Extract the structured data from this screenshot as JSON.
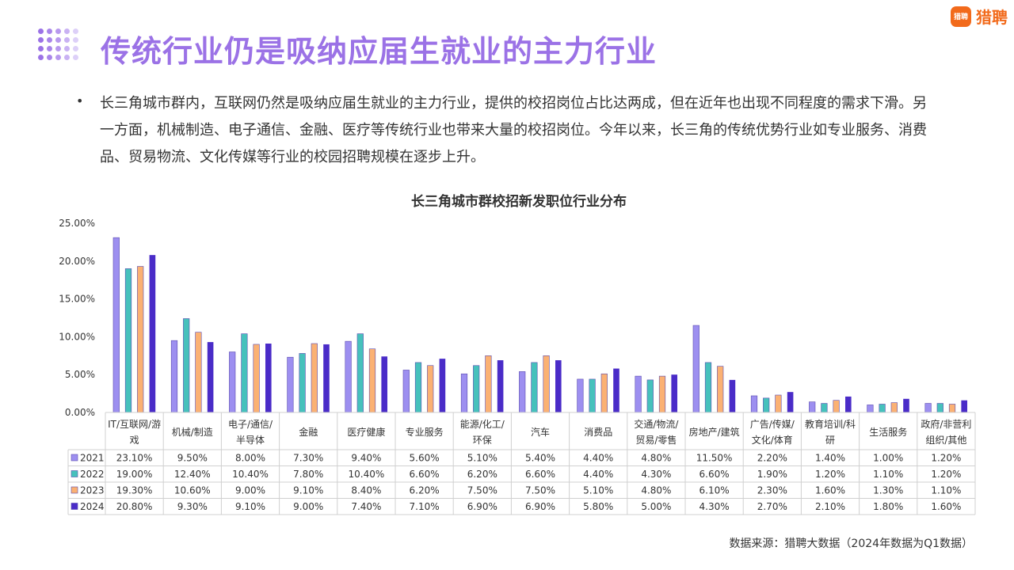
{
  "header": {
    "title": "传统行业仍是吸纳应届生就业的主力行业",
    "logo_mark": "猎聘",
    "logo_text": "猎聘"
  },
  "content": {
    "bullet": "•",
    "paragraph": "长三角城市群内，互联网仍然是吸纳应届生就业的主力行业，提供的校招岗位占比达两成，但在近年也出现不同程度的需求下滑。另一方面，机械制造、电子通信、金融、医疗等传统行业也带来大量的校招岗位。今年以来，长三角的传统优势行业如专业服务、消费品、贸易物流、文化传媒等行业的校园招聘规模在逐步上升。"
  },
  "source": "数据来源：猎聘大数据（2024年数据为Q1数据）",
  "colors": {
    "title": "#9b72e6",
    "logo": "#f26a1b",
    "series": [
      "#9d8ff0",
      "#46c1bc",
      "#fbb173",
      "#4a2cc8"
    ]
  },
  "chart_data": {
    "type": "bar",
    "title": "长三角城市群校招新发职位行业分布",
    "ylim": [
      0,
      25
    ],
    "y_ticks": [
      "0.00%",
      "5.00%",
      "10.00%",
      "15.00%",
      "20.00%",
      "25.00%"
    ],
    "grid": false,
    "legend": "data-table",
    "categories": [
      [
        "IT/互联网/游",
        "戏"
      ],
      [
        "机械/制造"
      ],
      [
        "电子/通信/",
        "半导体"
      ],
      [
        "金融"
      ],
      [
        "医疗健康"
      ],
      [
        "专业服务"
      ],
      [
        "能源/化工/",
        "环保"
      ],
      [
        "汽车"
      ],
      [
        "消费品"
      ],
      [
        "交通/物流/",
        "贸易/零售"
      ],
      [
        "房地产/建筑"
      ],
      [
        "广告/传媒/",
        "文化/体育"
      ],
      [
        "教育培训/科",
        "研"
      ],
      [
        "生活服务"
      ],
      [
        "政府/非营利",
        "组织/其他"
      ]
    ],
    "series": [
      {
        "name": "2021",
        "values": [
          23.1,
          9.5,
          8.0,
          7.3,
          9.4,
          5.6,
          5.1,
          5.4,
          4.4,
          4.8,
          11.5,
          2.2,
          1.4,
          1.0,
          1.2
        ],
        "labels": [
          "23.10%",
          "9.50%",
          "8.00%",
          "7.30%",
          "9.40%",
          "5.60%",
          "5.10%",
          "5.40%",
          "4.40%",
          "4.80%",
          "11.50%",
          "2.20%",
          "1.40%",
          "1.00%",
          "1.20%"
        ]
      },
      {
        "name": "2022",
        "values": [
          19.0,
          12.4,
          10.4,
          7.8,
          10.4,
          6.6,
          6.2,
          6.6,
          4.4,
          4.3,
          6.6,
          1.9,
          1.2,
          1.1,
          1.2
        ],
        "labels": [
          "19.00%",
          "12.40%",
          "10.40%",
          "7.80%",
          "10.40%",
          "6.60%",
          "6.20%",
          "6.60%",
          "4.40%",
          "4.30%",
          "6.60%",
          "1.90%",
          "1.20%",
          "1.10%",
          "1.20%"
        ]
      },
      {
        "name": "2023",
        "values": [
          19.3,
          10.6,
          9.0,
          9.1,
          8.4,
          6.2,
          7.5,
          7.5,
          5.1,
          4.8,
          6.1,
          2.3,
          1.6,
          1.3,
          1.1
        ],
        "labels": [
          "19.30%",
          "10.60%",
          "9.00%",
          "9.10%",
          "8.40%",
          "6.20%",
          "7.50%",
          "7.50%",
          "5.10%",
          "4.80%",
          "6.10%",
          "2.30%",
          "1.60%",
          "1.30%",
          "1.10%"
        ]
      },
      {
        "name": "2024",
        "values": [
          20.8,
          9.3,
          9.1,
          9.0,
          7.4,
          7.1,
          6.9,
          6.9,
          5.8,
          5.0,
          4.3,
          2.7,
          2.1,
          1.8,
          1.6
        ],
        "labels": [
          "20.80%",
          "9.30%",
          "9.10%",
          "9.00%",
          "7.40%",
          "7.10%",
          "6.90%",
          "6.90%",
          "5.80%",
          "5.00%",
          "4.30%",
          "2.70%",
          "2.10%",
          "1.80%",
          "1.60%"
        ]
      }
    ]
  }
}
